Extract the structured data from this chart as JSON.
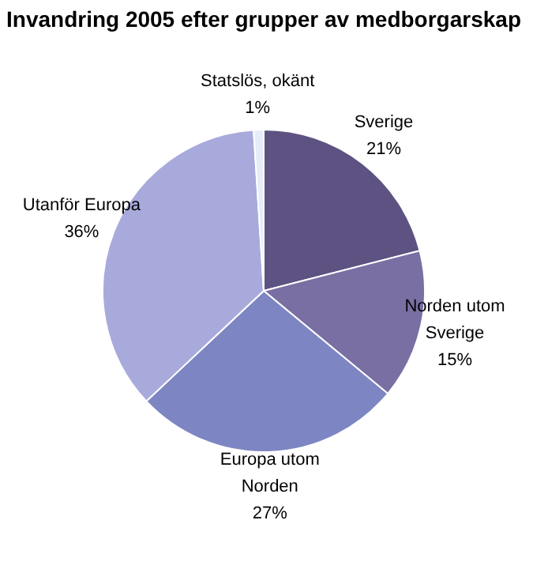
{
  "chart_data": {
    "type": "pie",
    "title": "Invandring 2005 efter grupper av medborgarskap",
    "categories": [
      "Sverige",
      "Norden utom Sverige",
      "Europa utom Norden",
      "Utanför Europa",
      "Statslös, okänt"
    ],
    "values": [
      21,
      15,
      27,
      36,
      1
    ],
    "value_labels": [
      "21%",
      "15%",
      "27%",
      "36%",
      "1%"
    ],
    "colors": [
      "#5e5282",
      "#7a6fa3",
      "#7d86c2",
      "#a9aadc",
      "#e6ecf8"
    ]
  }
}
